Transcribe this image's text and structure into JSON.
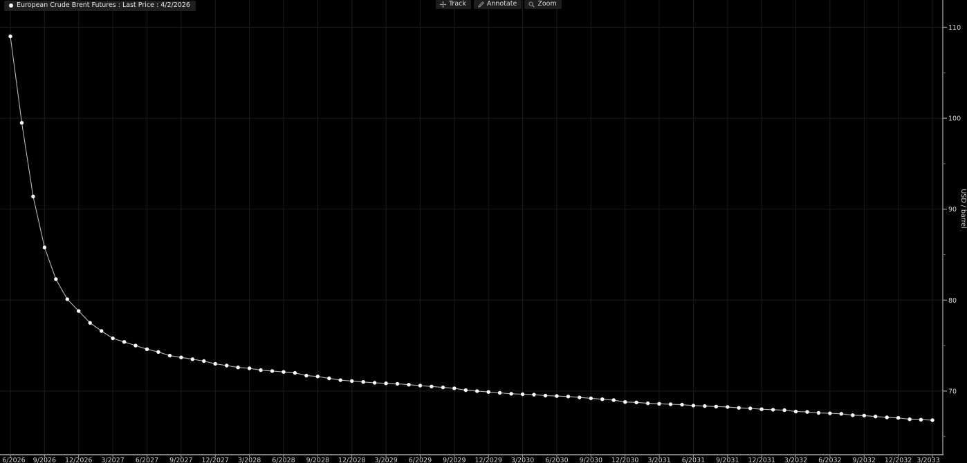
{
  "legend": {
    "label": "European Crude Brent Futures : Last Price : 4/2/2026",
    "marker_color": "#ffffff"
  },
  "toolbar": {
    "track_label": "Track",
    "annotate_label": "Annotate",
    "zoom_label": "Zoom"
  },
  "chart_data": {
    "type": "line",
    "title": "European Crude Brent Futures : Last Price : 4/2/2026",
    "xlabel": "",
    "ylabel": "USD / barrel",
    "ylim": [
      63,
      113
    ],
    "y_major_ticks": [
      110,
      100,
      90,
      80,
      70
    ],
    "y_minor_ticks": [
      105,
      95,
      85,
      75,
      65
    ],
    "x_tick_labels": [
      "6/2026",
      "9/2026",
      "12/2026",
      "3/2027",
      "6/2027",
      "9/2027",
      "12/2027",
      "3/2028",
      "6/2028",
      "9/2028",
      "12/2028",
      "3/2029",
      "6/2029",
      "9/2029",
      "12/2029",
      "3/2030",
      "6/2030",
      "9/2030",
      "12/2030",
      "3/2031",
      "6/2031",
      "9/2031",
      "12/2031",
      "3/2032",
      "6/2032",
      "9/2032",
      "12/2032",
      "3/2033"
    ],
    "points_per_x_tick": 3,
    "grid": true,
    "legend_position": "top-left",
    "values": [
      109.0,
      99.5,
      91.4,
      85.8,
      82.3,
      80.1,
      78.8,
      77.5,
      76.6,
      75.8,
      75.4,
      75.0,
      74.6,
      74.3,
      73.9,
      73.7,
      73.5,
      73.3,
      73.0,
      72.8,
      72.6,
      72.5,
      72.3,
      72.2,
      72.1,
      72.0,
      71.7,
      71.6,
      71.4,
      71.2,
      71.1,
      71.0,
      70.9,
      70.85,
      70.8,
      70.7,
      70.6,
      70.5,
      70.4,
      70.3,
      70.1,
      70.0,
      69.9,
      69.8,
      69.7,
      69.65,
      69.6,
      69.5,
      69.45,
      69.4,
      69.3,
      69.2,
      69.1,
      69.0,
      68.8,
      68.75,
      68.65,
      68.6,
      68.55,
      68.5,
      68.4,
      68.35,
      68.3,
      68.25,
      68.15,
      68.1,
      68.0,
      67.95,
      67.9,
      67.75,
      67.7,
      67.6,
      67.55,
      67.5,
      67.35,
      67.3,
      67.2,
      67.1,
      67.05,
      66.9,
      66.85,
      66.8
    ],
    "colors": {
      "background": "#000000",
      "line": "#b8b8b8",
      "marker": "#ffffff",
      "grid": "#1c1c1c",
      "axis": "#a0a0a0",
      "tick_label": "#d6d6d6"
    }
  }
}
